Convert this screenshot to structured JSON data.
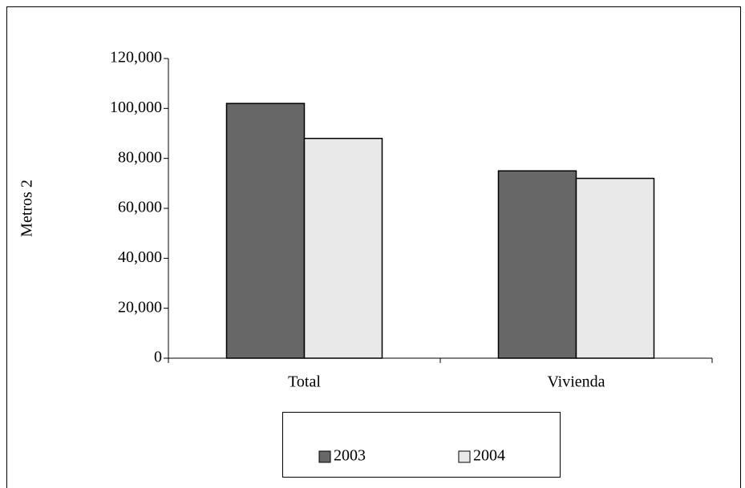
{
  "chart_data": {
    "type": "bar",
    "y_label": "Metros 2",
    "categories": [
      "Total",
      "Vivienda"
    ],
    "series": [
      {
        "name": "2003",
        "color": "#676767",
        "values": [
          102000,
          75000
        ]
      },
      {
        "name": "2004",
        "color": "#e9e9e9",
        "values": [
          88000,
          72000
        ]
      }
    ],
    "ylim": [
      0,
      120000
    ],
    "yticks": [
      0,
      {
        "value": 20000,
        "label": "20,000"
      },
      {
        "value": 40000,
        "label": "40,000"
      },
      {
        "value": 60000,
        "label": "60,000"
      },
      {
        "value": 80000,
        "label": "80,000"
      },
      {
        "value": 100000,
        "label": "100,000"
      },
      {
        "value": 120000,
        "label": "120,000"
      }
    ],
    "legend": "bottom"
  }
}
